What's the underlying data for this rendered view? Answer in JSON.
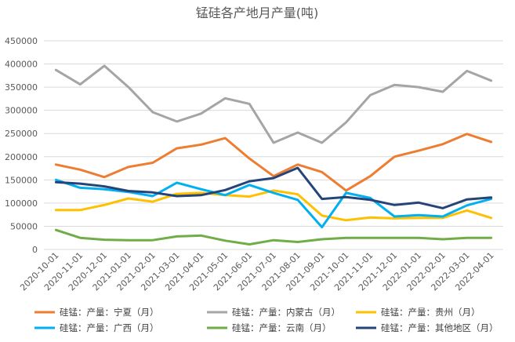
{
  "chart_data": {
    "type": "line",
    "title": "锰硅各产地月产量(吨)",
    "xlabel": "",
    "ylabel": "",
    "ylim": [
      0,
      450000
    ],
    "yticks": [
      "0",
      "50000",
      "100000",
      "150000",
      "200000",
      "250000",
      "300000",
      "350000",
      "400000",
      "450000"
    ],
    "grid": true,
    "legend_position": "bottom",
    "categories": [
      "2020-10-01",
      "2020-11-01",
      "2020-12-01",
      "2021-01-01",
      "2021-02-01",
      "2021-03-01",
      "2021-04-01",
      "2021-05-01",
      "2021-06-01",
      "2021-07-01",
      "2021-08-01",
      "2021-09-01",
      "2021-10-01",
      "2021-11-01",
      "2021-12-01",
      "2022-01-01",
      "2022-02-01",
      "2022-03-01",
      "2022-04-01"
    ],
    "series": [
      {
        "name": "硅锰：产量：宁夏（月）",
        "color": "#ed7d31",
        "values": [
          183000,
          172000,
          156000,
          178000,
          187000,
          218000,
          226000,
          240000,
          196000,
          158000,
          183000,
          167000,
          127000,
          158000,
          200000,
          213000,
          227000,
          249000,
          232000
        ]
      },
      {
        "name": "硅锰：产量：内蒙古（月）",
        "color": "#a5a5a5",
        "values": [
          387000,
          356000,
          396000,
          350000,
          296000,
          276000,
          293000,
          326000,
          314000,
          230000,
          252000,
          230000,
          274000,
          333000,
          355000,
          350000,
          340000,
          385000,
          364000
        ]
      },
      {
        "name": "硅锰：产量：贵州（月）",
        "color": "#ffc000",
        "values": [
          85000,
          85000,
          96000,
          110000,
          103000,
          120000,
          122000,
          117000,
          114000,
          127000,
          119000,
          73000,
          63000,
          69000,
          67000,
          68000,
          68000,
          84000,
          68000
        ]
      },
      {
        "name": "硅锰：产量：广西（月）",
        "color": "#00b0f0",
        "values": [
          150000,
          133000,
          130000,
          124000,
          115000,
          144000,
          130000,
          117000,
          139000,
          122000,
          107000,
          48000,
          122000,
          111000,
          71000,
          74000,
          71000,
          95000,
          109000
        ]
      },
      {
        "name": "硅锰：产量：云南（月）",
        "color": "#70ad47",
        "values": [
          42000,
          25000,
          21000,
          20000,
          20000,
          28000,
          30000,
          19000,
          11000,
          20000,
          16000,
          22000,
          25000,
          25000,
          25000,
          25000,
          22000,
          25000,
          25000
        ]
      },
      {
        "name": "硅锰：产量：其他地区（月）",
        "color": "#264478",
        "values": [
          145000,
          142000,
          136000,
          126000,
          123000,
          115000,
          117000,
          128000,
          147000,
          154000,
          176000,
          109000,
          113000,
          107000,
          96000,
          101000,
          89000,
          108000,
          112000
        ]
      }
    ]
  }
}
